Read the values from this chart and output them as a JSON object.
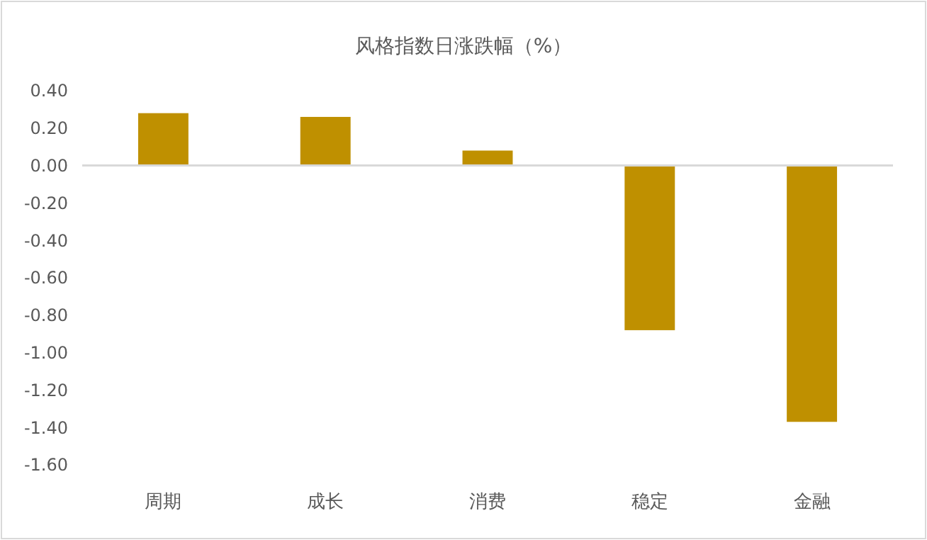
{
  "chart_data": {
    "type": "bar",
    "title": "风格指数日涨跌幅（%）",
    "categories": [
      "周期",
      "成长",
      "消费",
      "稳定",
      "金融"
    ],
    "values": [
      0.28,
      0.26,
      0.08,
      -0.88,
      -1.37
    ],
    "color": "#bf9000",
    "ylim": [
      -1.6,
      0.4
    ],
    "yticks": [
      {
        "value": 0.4,
        "label": "0.40"
      },
      {
        "value": 0.2,
        "label": "0.20"
      },
      {
        "value": 0,
        "label": "0.00"
      },
      {
        "value": -0.2,
        "label": "-0.20"
      },
      {
        "value": -0.4,
        "label": "-0.40"
      },
      {
        "value": -0.6,
        "label": "-0.60"
      },
      {
        "value": -0.8,
        "label": "-0.80"
      },
      {
        "value": -1,
        "label": "-1.00"
      },
      {
        "value": -1.2,
        "label": "-1.20"
      },
      {
        "value": -1.4,
        "label": "-1.40"
      },
      {
        "value": -1.6,
        "label": "-1.60"
      }
    ]
  }
}
